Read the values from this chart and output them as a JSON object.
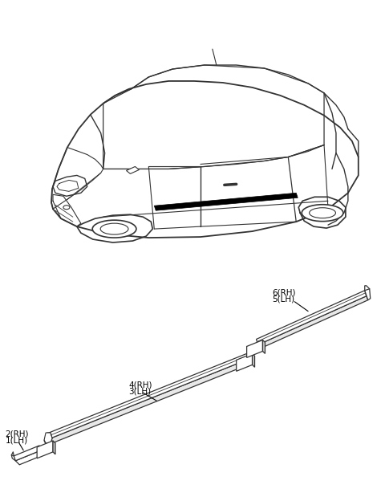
{
  "bg_color": "#ffffff",
  "line_color": "#333333",
  "black": "#000000",
  "gray_light": "#e8e8e8",
  "gray_mid": "#cccccc",
  "font_size": 7.5,
  "labels": {
    "l1": "1(LH)",
    "l2": "2(RH)",
    "l3": "3(LH)",
    "l4": "4(RH)",
    "l5": "5(LH)",
    "l6": "6(RH)"
  }
}
